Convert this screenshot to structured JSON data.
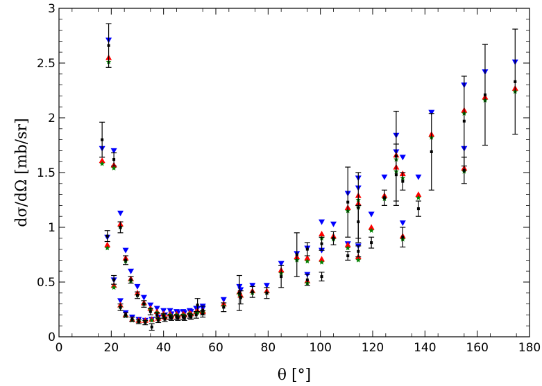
{
  "chart_data": {
    "type": "scatter",
    "xlabel": "θ [°]",
    "ylabel": "dσ/dΩ [mb/sr]",
    "xlim": [
      0,
      180
    ],
    "ylim": [
      0,
      3
    ],
    "grid": false,
    "xticks": [
      0,
      20,
      40,
      60,
      80,
      100,
      120,
      140,
      160,
      180
    ],
    "yticks": [
      0,
      0.5,
      1,
      1.5,
      2,
      2.5,
      3
    ],
    "ytick_labels": [
      "0",
      "0.5",
      "1",
      "1.5",
      "2",
      "2.5",
      "3"
    ],
    "colors": {
      "data": "#000000",
      "blue": "#0000ff",
      "red": "#ff0000",
      "green": "#008000"
    },
    "series": [
      {
        "marker": "square-errorbar",
        "color": "#000000",
        "points": [
          [
            16.5,
            1.8,
            0.16
          ],
          [
            19,
            2.66,
            0.2
          ],
          [
            21,
            1.62,
            0.06
          ],
          [
            23.5,
            1.0,
            0.05
          ],
          [
            21,
            0.52,
            0.04
          ],
          [
            18.5,
            0.92,
            0.05
          ],
          [
            25.5,
            0.7,
            0.04
          ],
          [
            27.5,
            0.52,
            0.03
          ],
          [
            30,
            0.38,
            0.03
          ],
          [
            32.5,
            0.3,
            0.03
          ],
          [
            35,
            0.23,
            0.03
          ],
          [
            37.5,
            0.2,
            0.02
          ],
          [
            40,
            0.19,
            0.02
          ],
          [
            42.5,
            0.18,
            0.02
          ],
          [
            45,
            0.18,
            0.02
          ],
          [
            47.5,
            0.18,
            0.02
          ],
          [
            50,
            0.19,
            0.02
          ],
          [
            52.5,
            0.2,
            0.03
          ],
          [
            55,
            0.21,
            0.03
          ],
          [
            23.5,
            0.27,
            0.03
          ],
          [
            25.5,
            0.2,
            0.02
          ],
          [
            28,
            0.16,
            0.02
          ],
          [
            30.5,
            0.14,
            0.02
          ],
          [
            33,
            0.13,
            0.02
          ],
          [
            35.5,
            0.09,
            0.03
          ],
          [
            38,
            0.15,
            0.02
          ],
          [
            40.5,
            0.16,
            0.02
          ],
          [
            43,
            0.17,
            0.02
          ],
          [
            45.5,
            0.17,
            0.02
          ],
          [
            48,
            0.17,
            0.02
          ],
          [
            50.5,
            0.18,
            0.02
          ],
          [
            53,
            0.29,
            0.06
          ],
          [
            55,
            0.24,
            0.04
          ],
          [
            63,
            0.27,
            0.04
          ],
          [
            69,
            0.4,
            0.16
          ],
          [
            69.5,
            0.36,
            0.06
          ],
          [
            74,
            0.41,
            0.05
          ],
          [
            79.5,
            0.4,
            0.05
          ],
          [
            85,
            0.55,
            0.1
          ],
          [
            91,
            0.75,
            0.2
          ],
          [
            95,
            0.52,
            0.05
          ],
          [
            95,
            0.8,
            0.06
          ],
          [
            100.5,
            0.55,
            0.04
          ],
          [
            100.5,
            0.85,
            0.06
          ],
          [
            105,
            0.9,
            0.06
          ],
          [
            110.5,
            0.74,
            0.04
          ],
          [
            110.5,
            1.23,
            0.32
          ],
          [
            114.5,
            1.18,
            0.32
          ],
          [
            114.5,
            0.78,
            0.05
          ],
          [
            114.5,
            1.05,
            0.15
          ],
          [
            119.5,
            0.86,
            0.05
          ],
          [
            124.5,
            1.27,
            0.07
          ],
          [
            129,
            1.48,
            0.28
          ],
          [
            131.5,
            1.42,
            0.08
          ],
          [
            131.5,
            0.91,
            0.09
          ],
          [
            129,
            1.65,
            0.41
          ],
          [
            137.5,
            1.17,
            0.07
          ],
          [
            142.5,
            1.69,
            0.35
          ],
          [
            155,
            1.97,
            0.41
          ],
          [
            155,
            1.52,
            0.12
          ],
          [
            163,
            2.21,
            0.46
          ],
          [
            174.5,
            2.33,
            0.48
          ]
        ]
      },
      {
        "marker": "triangle-down",
        "color": "#0000ff",
        "points": [
          [
            16.5,
            1.72
          ],
          [
            19,
            2.71
          ],
          [
            21,
            1.7
          ],
          [
            23.5,
            1.13
          ],
          [
            21,
            0.52
          ],
          [
            18.5,
            0.91
          ],
          [
            25.5,
            0.79
          ],
          [
            27.5,
            0.6
          ],
          [
            30,
            0.46
          ],
          [
            32.5,
            0.36
          ],
          [
            35,
            0.29
          ],
          [
            37.5,
            0.26
          ],
          [
            40,
            0.24
          ],
          [
            42.5,
            0.24
          ],
          [
            45,
            0.23
          ],
          [
            47.5,
            0.23
          ],
          [
            50,
            0.24
          ],
          [
            52.5,
            0.26
          ],
          [
            55,
            0.28
          ],
          [
            23.5,
            0.33
          ],
          [
            25.5,
            0.22
          ],
          [
            28,
            0.18
          ],
          [
            30.5,
            0.16
          ],
          [
            33,
            0.15
          ],
          [
            35.5,
            0.16
          ],
          [
            38,
            0.18
          ],
          [
            40.5,
            0.2
          ],
          [
            43,
            0.21
          ],
          [
            45.5,
            0.22
          ],
          [
            48,
            0.22
          ],
          [
            50.5,
            0.23
          ],
          [
            53,
            0.26
          ],
          [
            55,
            0.26
          ],
          [
            63,
            0.34
          ],
          [
            69,
            0.46
          ],
          [
            69.5,
            0.43
          ],
          [
            74,
            0.47
          ],
          [
            79.5,
            0.47
          ],
          [
            85,
            0.67
          ],
          [
            91,
            0.76
          ],
          [
            95,
            0.81
          ],
          [
            95,
            0.57
          ],
          [
            100.5,
            1.05
          ],
          [
            100.5,
            0.79
          ],
          [
            105,
            1.03
          ],
          [
            110.5,
            1.31
          ],
          [
            110.5,
            0.85
          ],
          [
            114.5,
            1.45
          ],
          [
            114.5,
            1.36
          ],
          [
            114.5,
            0.83
          ],
          [
            119.5,
            1.12
          ],
          [
            124.5,
            1.46
          ],
          [
            129,
            1.84
          ],
          [
            129,
            1.69
          ],
          [
            131.5,
            1.64
          ],
          [
            131.5,
            1.04
          ],
          [
            137.5,
            1.46
          ],
          [
            142.5,
            2.05
          ],
          [
            155,
            2.3
          ],
          [
            155,
            1.72
          ],
          [
            163,
            2.42
          ],
          [
            174.5,
            2.51
          ]
        ]
      },
      {
        "marker": "triangle-up",
        "color": "#ff0000",
        "points": [
          [
            16.5,
            1.61
          ],
          [
            19,
            2.55
          ],
          [
            21,
            1.57
          ],
          [
            23.5,
            1.03
          ],
          [
            21,
            0.47
          ],
          [
            18.5,
            0.84
          ],
          [
            25.5,
            0.72
          ],
          [
            27.5,
            0.53
          ],
          [
            30,
            0.4
          ],
          [
            32.5,
            0.31
          ],
          [
            35,
            0.26
          ],
          [
            37.5,
            0.23
          ],
          [
            40,
            0.21
          ],
          [
            42.5,
            0.21
          ],
          [
            45,
            0.21
          ],
          [
            47.5,
            0.21
          ],
          [
            50,
            0.22
          ],
          [
            52.5,
            0.23
          ],
          [
            55,
            0.24
          ],
          [
            23.5,
            0.29
          ],
          [
            25.5,
            0.2
          ],
          [
            28,
            0.16
          ],
          [
            30.5,
            0.15
          ],
          [
            33,
            0.15
          ],
          [
            35.5,
            0.16
          ],
          [
            38,
            0.17
          ],
          [
            40.5,
            0.18
          ],
          [
            43,
            0.19
          ],
          [
            45.5,
            0.19
          ],
          [
            48,
            0.2
          ],
          [
            50.5,
            0.21
          ],
          [
            53,
            0.24
          ],
          [
            55,
            0.23
          ],
          [
            63,
            0.3
          ],
          [
            69,
            0.41
          ],
          [
            69.5,
            0.38
          ],
          [
            74,
            0.42
          ],
          [
            79.5,
            0.42
          ],
          [
            85,
            0.61
          ],
          [
            91,
            0.73
          ],
          [
            95,
            0.72
          ],
          [
            95,
            0.51
          ],
          [
            100.5,
            0.94
          ],
          [
            100.5,
            0.71
          ],
          [
            105,
            0.92
          ],
          [
            110.5,
            1.18
          ],
          [
            110.5,
            0.84
          ],
          [
            114.5,
            1.29
          ],
          [
            114.5,
            1.22
          ],
          [
            114.5,
            0.73
          ],
          [
            119.5,
            1.0
          ],
          [
            124.5,
            1.29
          ],
          [
            129,
            1.66
          ],
          [
            129,
            1.55
          ],
          [
            131.5,
            1.49
          ],
          [
            131.5,
            0.92
          ],
          [
            137.5,
            1.3
          ],
          [
            142.5,
            1.85
          ],
          [
            155,
            2.07
          ],
          [
            155,
            1.54
          ],
          [
            163,
            2.19
          ],
          [
            174.5,
            2.27
          ]
        ]
      },
      {
        "marker": "star",
        "color": "#008000",
        "points": [
          [
            16.5,
            1.58
          ],
          [
            19,
            2.51
          ],
          [
            21,
            1.54
          ],
          [
            23.5,
            1.0
          ],
          [
            21,
            0.45
          ],
          [
            18.5,
            0.81
          ],
          [
            25.5,
            0.69
          ],
          [
            27.5,
            0.51
          ],
          [
            30,
            0.38
          ],
          [
            32.5,
            0.3
          ],
          [
            35,
            0.25
          ],
          [
            37.5,
            0.22
          ],
          [
            40,
            0.2
          ],
          [
            42.5,
            0.2
          ],
          [
            45,
            0.2
          ],
          [
            47.5,
            0.2
          ],
          [
            50,
            0.21
          ],
          [
            52.5,
            0.22
          ],
          [
            55,
            0.23
          ],
          [
            23.5,
            0.27
          ],
          [
            25.5,
            0.19
          ],
          [
            28,
            0.15
          ],
          [
            30.5,
            0.14
          ],
          [
            33,
            0.14
          ],
          [
            35.5,
            0.15
          ],
          [
            38,
            0.16
          ],
          [
            40.5,
            0.17
          ],
          [
            43,
            0.18
          ],
          [
            45.5,
            0.18
          ],
          [
            48,
            0.19
          ],
          [
            50.5,
            0.2
          ],
          [
            53,
            0.22
          ],
          [
            55,
            0.22
          ],
          [
            63,
            0.28
          ],
          [
            69,
            0.39
          ],
          [
            69.5,
            0.36
          ],
          [
            74,
            0.4
          ],
          [
            79.5,
            0.4
          ],
          [
            85,
            0.58
          ],
          [
            91,
            0.7
          ],
          [
            95,
            0.69
          ],
          [
            95,
            0.49
          ],
          [
            100.5,
            0.9
          ],
          [
            100.5,
            0.68
          ],
          [
            105,
            0.89
          ],
          [
            110.5,
            1.15
          ],
          [
            110.5,
            0.81
          ],
          [
            114.5,
            1.25
          ],
          [
            114.5,
            1.18
          ],
          [
            114.5,
            0.7
          ],
          [
            119.5,
            0.97
          ],
          [
            124.5,
            1.26
          ],
          [
            129,
            1.62
          ],
          [
            129,
            1.51
          ],
          [
            131.5,
            1.45
          ],
          [
            131.5,
            0.89
          ],
          [
            137.5,
            1.27
          ],
          [
            142.5,
            1.82
          ],
          [
            155,
            2.04
          ],
          [
            155,
            1.51
          ],
          [
            163,
            2.16
          ],
          [
            174.5,
            2.24
          ]
        ]
      }
    ]
  }
}
